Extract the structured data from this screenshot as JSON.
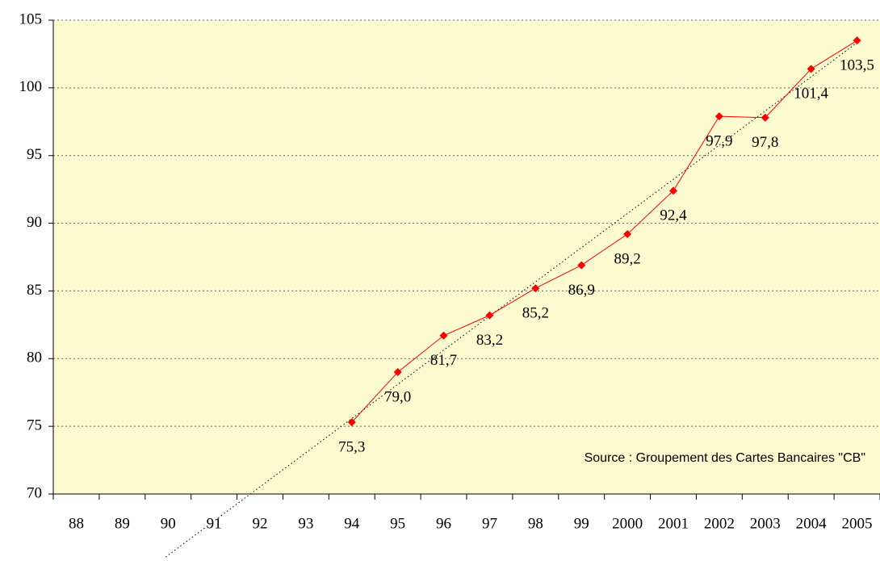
{
  "chart_data": {
    "type": "line",
    "annotation": "Source : Groupement des Cartes Bancaires \"CB\"",
    "categories": [
      "88",
      "89",
      "90",
      "91",
      "92",
      "93",
      "94",
      "95",
      "96",
      "97",
      "98",
      "99",
      "2000",
      "2001",
      "2002",
      "2003",
      "2004",
      "2005"
    ],
    "series": [
      {
        "color": "#ff0000",
        "values": [
          null,
          null,
          null,
          null,
          null,
          null,
          75.3,
          79.0,
          81.7,
          83.2,
          85.2,
          86.9,
          89.2,
          92.4,
          97.9,
          97.8,
          101.4,
          103.5
        ],
        "value_labels": [
          null,
          null,
          null,
          null,
          null,
          null,
          "75,3",
          "79,0",
          "81,7",
          "83,2",
          "85,2",
          "86,9",
          "89,2",
          "92,4",
          "97,9",
          "97,8",
          "101,4",
          "103,5"
        ]
      }
    ],
    "ylim": [
      70,
      105
    ],
    "yticks": [
      70,
      75,
      80,
      85,
      90,
      95,
      100,
      105
    ],
    "grid": true,
    "trendline": true,
    "plot_background": "#fcfbd0"
  }
}
